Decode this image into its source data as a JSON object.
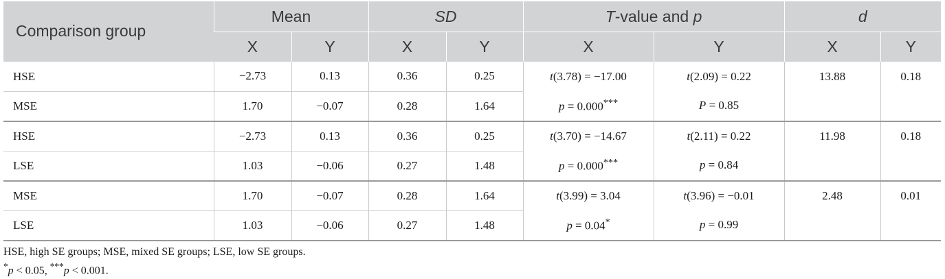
{
  "header": {
    "group_label": "Comparison group",
    "mean": "Mean",
    "sd": "SD",
    "tvalue_prefix": "T",
    "tvalue_rest": "-value and ",
    "tvalue_p": "p",
    "d": "d",
    "x": "X",
    "y": "Y"
  },
  "rows": [
    {
      "group": "HSE",
      "mean_x": "−2.73",
      "mean_y": "0.13",
      "sd_x": "0.36",
      "sd_y": "0.25",
      "t_x_df": "(3.78) = −17.00",
      "t_y_df": "(2.09) = 0.22",
      "d_x": "13.88",
      "d_y": "0.18"
    },
    {
      "group": "MSE",
      "mean_x": "1.70",
      "mean_y": "−0.07",
      "sd_x": "0.28",
      "sd_y": "1.64",
      "p_x": " = 0.000",
      "p_x_sig": "***",
      "p_y_letter": "P",
      "p_y": " = 0.85"
    },
    {
      "group": "HSE",
      "mean_x": "−2.73",
      "mean_y": "0.13",
      "sd_x": "0.36",
      "sd_y": "0.25",
      "t_x_df": "(3.70) = −14.67",
      "t_y_df": "(2.11) = 0.22",
      "d_x": "11.98",
      "d_y": "0.18"
    },
    {
      "group": "LSE",
      "mean_x": "1.03",
      "mean_y": "−0.06",
      "sd_x": "0.27",
      "sd_y": "1.48",
      "p_x": " = 0.000",
      "p_x_sig": "***",
      "p_y_letter": "p",
      "p_y": " = 0.84"
    },
    {
      "group": "MSE",
      "mean_x": "1.70",
      "mean_y": "−0.07",
      "sd_x": "0.28",
      "sd_y": "1.64",
      "t_x_df": "(3.99) = 3.04",
      "t_y_df": "(3.96) = −0.01",
      "d_x": "2.48",
      "d_y": "0.01"
    },
    {
      "group": "LSE",
      "mean_x": "1.03",
      "mean_y": "−0.06",
      "sd_x": "0.27",
      "sd_y": "1.48",
      "p_x": " = 0.04",
      "p_x_sig": "*",
      "p_y_letter": "p",
      "p_y": " = 0.99"
    }
  ],
  "t_letter": "t",
  "p_letter": "p",
  "notes": {
    "abbrev": "HSE, high SE groups; MSE, mixed SE groups; LSE, low SE groups.",
    "sig1_mark": "*",
    "sig1_text": " < 0.05, ",
    "sig2_mark": "***",
    "sig2_text": " < 0.001."
  }
}
